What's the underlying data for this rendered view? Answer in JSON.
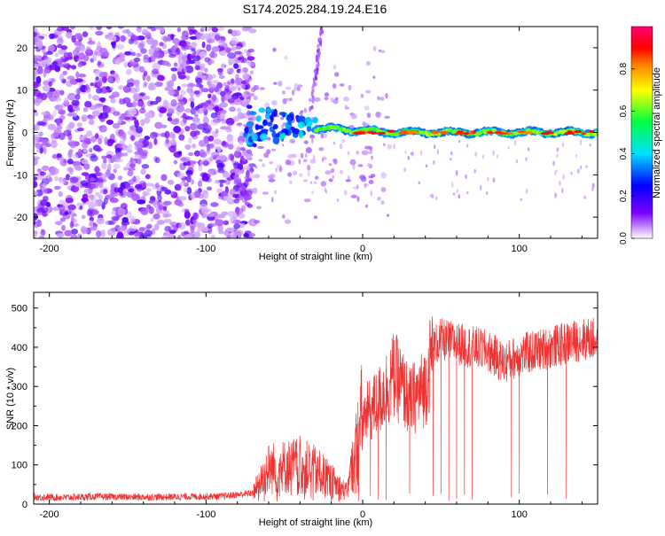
{
  "title": "S174.2025.284.19.24.E16",
  "chart_data": [
    {
      "type": "heatmap",
      "title": "S174.2025.284.19.24.E16",
      "xlabel": "Height of straight line (km)",
      "ylabel": "Frequency (Hz)",
      "xlim": [
        -210,
        150
      ],
      "ylim": [
        -25,
        25
      ],
      "xticks": [
        -200,
        -100,
        0,
        100
      ],
      "yticks": [
        -20,
        -10,
        0,
        10,
        20
      ],
      "colorbar": {
        "label": "Normalized spectral amplitude",
        "range": [
          0,
          1
        ],
        "ticks": [
          0.0,
          0.2,
          0.4,
          0.6,
          0.8
        ],
        "tick_labels": [
          "0.0",
          "0.2",
          "0.4",
          "0.6",
          "0.8"
        ],
        "colormap": "white-purple-blue-cyan-green-yellow-red-magenta"
      },
      "regions": [
        {
          "x_from": -210,
          "x_to": -75,
          "description": "noise",
          "amplitude": [
            0.05,
            0.2
          ]
        },
        {
          "x_from": -75,
          "x_to": -30,
          "description": "emerging signal near 0 Hz",
          "amplitude": [
            0.2,
            0.5
          ]
        },
        {
          "x_from": -30,
          "x_to": 150,
          "description": "strong line at 0 Hz",
          "amplitude": [
            0.6,
            0.95
          ]
        }
      ]
    },
    {
      "type": "line",
      "xlabel": "Height of straight line (km)",
      "ylabel": "SNR (10 * v/v)",
      "xlim": [
        -210,
        150
      ],
      "ylim": [
        0,
        540
      ],
      "xticks": [
        -200,
        -100,
        0,
        100
      ],
      "yticks": [
        0,
        100,
        200,
        300,
        400,
        500
      ],
      "series": [
        {
          "name": "SNR",
          "color": "#ee3333",
          "x": [
            -210,
            -190,
            -170,
            -150,
            -130,
            -110,
            -90,
            -70,
            -65,
            -60,
            -50,
            -40,
            -30,
            -20,
            -10,
            0,
            10,
            20,
            25,
            30,
            40,
            45,
            50,
            60,
            70,
            80,
            90,
            100,
            110,
            120,
            130,
            140,
            150
          ],
          "values": [
            18,
            17,
            19,
            18,
            18,
            19,
            20,
            28,
            60,
            90,
            95,
            100,
            85,
            60,
            30,
            220,
            260,
            330,
            300,
            260,
            300,
            400,
            420,
            410,
            400,
            390,
            360,
            380,
            390,
            400,
            410,
            420,
            420
          ]
        }
      ],
      "dropouts": [
        -30,
        -15,
        -5,
        5,
        10,
        15,
        30,
        45,
        50,
        55,
        60,
        65,
        70,
        95,
        100,
        118,
        130
      ]
    }
  ]
}
